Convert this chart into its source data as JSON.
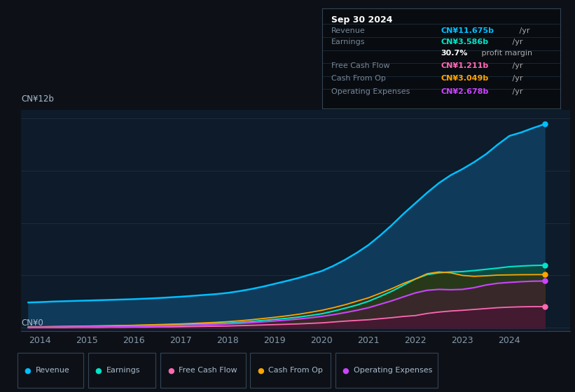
{
  "background_color": "#0d1117",
  "plot_bg_color": "#0d1b2a",
  "title": "Sep 30 2024",
  "ylabel_top": "CN¥12b",
  "ylabel_bottom": "CN¥0",
  "x_labels": [
    "2014",
    "2015",
    "2016",
    "2017",
    "2018",
    "2019",
    "2020",
    "2021",
    "2022",
    "2023",
    "2024"
  ],
  "grid_color": "#263340",
  "info_box": {
    "title": "Sep 30 2024",
    "rows": [
      {
        "label": "Revenue",
        "value": "CN¥11.675b",
        "suffix": " /yr",
        "color": "#00bfff"
      },
      {
        "label": "Earnings",
        "value": "CN¥3.586b",
        "suffix": " /yr",
        "color": "#00e5c8"
      },
      {
        "label": "",
        "value": "30.7%",
        "suffix": " profit margin",
        "color": "#ffffff"
      },
      {
        "label": "Free Cash Flow",
        "value": "CN¥1.211b",
        "suffix": " /yr",
        "color": "#ff69b4"
      },
      {
        "label": "Cash From Op",
        "value": "CN¥3.049b",
        "suffix": " /yr",
        "color": "#ffa500"
      },
      {
        "label": "Operating Expenses",
        "value": "CN¥2.678b",
        "suffix": " /yr",
        "color": "#cc44ff"
      }
    ]
  },
  "legend": [
    {
      "label": "Revenue",
      "color": "#00bfff"
    },
    {
      "label": "Earnings",
      "color": "#00e5c8"
    },
    {
      "label": "Free Cash Flow",
      "color": "#ff69b4"
    },
    {
      "label": "Cash From Op",
      "color": "#ffa500"
    },
    {
      "label": "Operating Expenses",
      "color": "#cc44ff"
    }
  ],
  "series": {
    "years": [
      2013.75,
      2014.0,
      2014.25,
      2014.5,
      2014.75,
      2015.0,
      2015.25,
      2015.5,
      2015.75,
      2016.0,
      2016.25,
      2016.5,
      2016.75,
      2017.0,
      2017.25,
      2017.5,
      2017.75,
      2018.0,
      2018.25,
      2018.5,
      2018.75,
      2019.0,
      2019.25,
      2019.5,
      2019.75,
      2020.0,
      2020.25,
      2020.5,
      2020.75,
      2021.0,
      2021.25,
      2021.5,
      2021.75,
      2022.0,
      2022.25,
      2022.5,
      2022.75,
      2023.0,
      2023.25,
      2023.5,
      2023.75,
      2024.0,
      2024.25,
      2024.5,
      2024.75
    ],
    "revenue": [
      1.45,
      1.47,
      1.5,
      1.52,
      1.54,
      1.56,
      1.58,
      1.6,
      1.62,
      1.64,
      1.67,
      1.7,
      1.74,
      1.78,
      1.83,
      1.88,
      1.93,
      2.0,
      2.1,
      2.22,
      2.36,
      2.52,
      2.68,
      2.85,
      3.05,
      3.25,
      3.55,
      3.9,
      4.3,
      4.75,
      5.3,
      5.9,
      6.55,
      7.15,
      7.75,
      8.3,
      8.75,
      9.1,
      9.5,
      9.95,
      10.5,
      11.0,
      11.2,
      11.45,
      11.675
    ],
    "earnings": [
      0.04,
      0.05,
      0.06,
      0.07,
      0.08,
      0.09,
      0.1,
      0.11,
      0.12,
      0.13,
      0.14,
      0.15,
      0.17,
      0.19,
      0.21,
      0.23,
      0.25,
      0.27,
      0.31,
      0.36,
      0.42,
      0.48,
      0.54,
      0.61,
      0.7,
      0.8,
      0.95,
      1.12,
      1.3,
      1.52,
      1.8,
      2.1,
      2.45,
      2.8,
      3.05,
      3.15,
      3.2,
      3.22,
      3.28,
      3.35,
      3.42,
      3.5,
      3.54,
      3.57,
      3.586
    ],
    "free_cash_flow": [
      0.0,
      0.01,
      0.01,
      0.01,
      0.02,
      0.02,
      0.02,
      0.03,
      0.03,
      0.04,
      0.04,
      0.05,
      0.05,
      0.06,
      0.07,
      0.08,
      0.09,
      0.1,
      0.12,
      0.14,
      0.16,
      0.18,
      0.2,
      0.22,
      0.25,
      0.28,
      0.33,
      0.38,
      0.42,
      0.46,
      0.52,
      0.58,
      0.65,
      0.7,
      0.82,
      0.9,
      0.96,
      1.0,
      1.05,
      1.1,
      1.15,
      1.18,
      1.2,
      1.21,
      1.211
    ],
    "cash_from_op": [
      0.04,
      0.05,
      0.06,
      0.07,
      0.08,
      0.09,
      0.1,
      0.11,
      0.13,
      0.14,
      0.16,
      0.18,
      0.2,
      0.22,
      0.25,
      0.28,
      0.31,
      0.35,
      0.4,
      0.46,
      0.53,
      0.6,
      0.68,
      0.77,
      0.88,
      1.0,
      1.15,
      1.32,
      1.52,
      1.72,
      1.98,
      2.25,
      2.55,
      2.8,
      3.1,
      3.2,
      3.15,
      3.0,
      2.95,
      2.98,
      3.02,
      3.03,
      3.04,
      3.045,
      3.049
    ],
    "op_expenses": [
      0.02,
      0.03,
      0.03,
      0.04,
      0.04,
      0.05,
      0.06,
      0.06,
      0.07,
      0.08,
      0.09,
      0.1,
      0.11,
      0.13,
      0.15,
      0.17,
      0.19,
      0.22,
      0.25,
      0.29,
      0.34,
      0.39,
      0.44,
      0.5,
      0.57,
      0.65,
      0.75,
      0.87,
      1.0,
      1.15,
      1.35,
      1.55,
      1.78,
      2.0,
      2.15,
      2.2,
      2.18,
      2.2,
      2.3,
      2.45,
      2.55,
      2.6,
      2.64,
      2.67,
      2.678
    ]
  }
}
